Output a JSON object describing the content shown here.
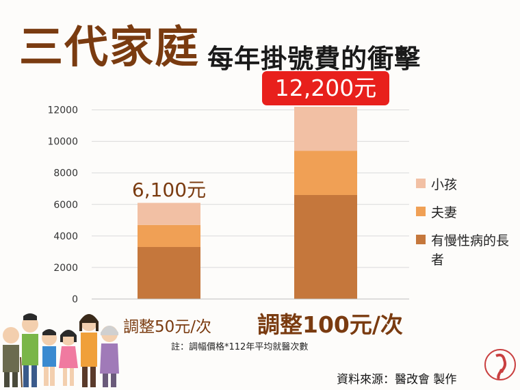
{
  "title": {
    "main": "三代家庭",
    "sub": "每年掛號費的衝擊"
  },
  "chart_data": {
    "type": "bar",
    "stacked": true,
    "categories": [
      "調整50元/次",
      "調整100元/次"
    ],
    "series": [
      {
        "name": "有慢性病的長者",
        "values": [
          3300,
          6600
        ],
        "color": "#c5773c"
      },
      {
        "name": "夫妻",
        "values": [
          1400,
          2800
        ],
        "color": "#f0a055"
      },
      {
        "name": "小孩",
        "values": [
          1400,
          2800
        ],
        "color": "#f2c0a4"
      }
    ],
    "totals": [
      "6,100元",
      "12,200元"
    ],
    "yticks": [
      0,
      2000,
      4000,
      6000,
      8000,
      10000,
      12000
    ],
    "ylim": [
      0,
      12200
    ],
    "grid": true,
    "legend_position": "right"
  },
  "legend": {
    "items": [
      {
        "label": "小孩",
        "color": "#f2c0a4"
      },
      {
        "label": "夫妻",
        "color": "#f0a055"
      },
      {
        "label": "有慢性病的長者",
        "color": "#c5773c"
      }
    ]
  },
  "note": "註：調幅價格*112年平均就醫次數",
  "source": "資料來源：醫改會 製作",
  "icons": {
    "family": "family-illustration",
    "logo": "organization-logo"
  }
}
